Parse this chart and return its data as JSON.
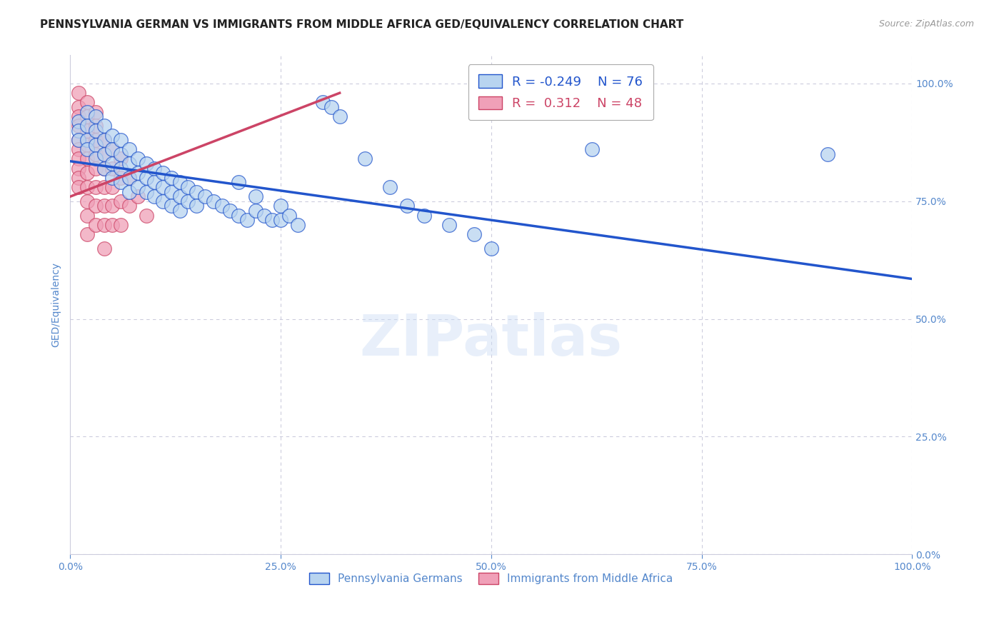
{
  "title": "PENNSYLVANIA GERMAN VS IMMIGRANTS FROM MIDDLE AFRICA GED/EQUIVALENCY CORRELATION CHART",
  "source": "Source: ZipAtlas.com",
  "ylabel": "GED/Equivalency",
  "watermark": "ZIPatlas",
  "r_blue": -0.249,
  "n_blue": 76,
  "r_pink": 0.312,
  "n_pink": 48,
  "blue_color": "#b8d4f0",
  "pink_color": "#f0a0b8",
  "trendline_blue": "#2255cc",
  "trendline_pink": "#cc4466",
  "blue_scatter": [
    [
      0.01,
      0.92
    ],
    [
      0.01,
      0.9
    ],
    [
      0.01,
      0.88
    ],
    [
      0.02,
      0.94
    ],
    [
      0.02,
      0.91
    ],
    [
      0.02,
      0.88
    ],
    [
      0.02,
      0.86
    ],
    [
      0.03,
      0.93
    ],
    [
      0.03,
      0.9
    ],
    [
      0.03,
      0.87
    ],
    [
      0.03,
      0.84
    ],
    [
      0.04,
      0.91
    ],
    [
      0.04,
      0.88
    ],
    [
      0.04,
      0.85
    ],
    [
      0.04,
      0.82
    ],
    [
      0.05,
      0.89
    ],
    [
      0.05,
      0.86
    ],
    [
      0.05,
      0.83
    ],
    [
      0.05,
      0.8
    ],
    [
      0.06,
      0.88
    ],
    [
      0.06,
      0.85
    ],
    [
      0.06,
      0.82
    ],
    [
      0.06,
      0.79
    ],
    [
      0.07,
      0.86
    ],
    [
      0.07,
      0.83
    ],
    [
      0.07,
      0.8
    ],
    [
      0.07,
      0.77
    ],
    [
      0.08,
      0.84
    ],
    [
      0.08,
      0.81
    ],
    [
      0.08,
      0.78
    ],
    [
      0.09,
      0.83
    ],
    [
      0.09,
      0.8
    ],
    [
      0.09,
      0.77
    ],
    [
      0.1,
      0.82
    ],
    [
      0.1,
      0.79
    ],
    [
      0.1,
      0.76
    ],
    [
      0.11,
      0.81
    ],
    [
      0.11,
      0.78
    ],
    [
      0.11,
      0.75
    ],
    [
      0.12,
      0.8
    ],
    [
      0.12,
      0.77
    ],
    [
      0.12,
      0.74
    ],
    [
      0.13,
      0.79
    ],
    [
      0.13,
      0.76
    ],
    [
      0.13,
      0.73
    ],
    [
      0.14,
      0.78
    ],
    [
      0.14,
      0.75
    ],
    [
      0.15,
      0.77
    ],
    [
      0.15,
      0.74
    ],
    [
      0.16,
      0.76
    ],
    [
      0.17,
      0.75
    ],
    [
      0.18,
      0.74
    ],
    [
      0.19,
      0.73
    ],
    [
      0.2,
      0.79
    ],
    [
      0.2,
      0.72
    ],
    [
      0.21,
      0.71
    ],
    [
      0.22,
      0.76
    ],
    [
      0.22,
      0.73
    ],
    [
      0.23,
      0.72
    ],
    [
      0.24,
      0.71
    ],
    [
      0.25,
      0.74
    ],
    [
      0.25,
      0.71
    ],
    [
      0.26,
      0.72
    ],
    [
      0.27,
      0.7
    ],
    [
      0.3,
      0.96
    ],
    [
      0.31,
      0.95
    ],
    [
      0.32,
      0.93
    ],
    [
      0.35,
      0.84
    ],
    [
      0.38,
      0.78
    ],
    [
      0.4,
      0.74
    ],
    [
      0.42,
      0.72
    ],
    [
      0.45,
      0.7
    ],
    [
      0.48,
      0.68
    ],
    [
      0.5,
      0.65
    ],
    [
      0.62,
      0.86
    ],
    [
      0.9,
      0.85
    ]
  ],
  "pink_scatter": [
    [
      0.01,
      0.98
    ],
    [
      0.01,
      0.95
    ],
    [
      0.01,
      0.93
    ],
    [
      0.01,
      0.91
    ],
    [
      0.01,
      0.88
    ],
    [
      0.01,
      0.86
    ],
    [
      0.01,
      0.84
    ],
    [
      0.01,
      0.82
    ],
    [
      0.01,
      0.8
    ],
    [
      0.01,
      0.78
    ],
    [
      0.02,
      0.96
    ],
    [
      0.02,
      0.93
    ],
    [
      0.02,
      0.9
    ],
    [
      0.02,
      0.87
    ],
    [
      0.02,
      0.84
    ],
    [
      0.02,
      0.81
    ],
    [
      0.02,
      0.78
    ],
    [
      0.02,
      0.75
    ],
    [
      0.02,
      0.72
    ],
    [
      0.02,
      0.68
    ],
    [
      0.03,
      0.94
    ],
    [
      0.03,
      0.91
    ],
    [
      0.03,
      0.88
    ],
    [
      0.03,
      0.85
    ],
    [
      0.03,
      0.82
    ],
    [
      0.03,
      0.78
    ],
    [
      0.03,
      0.74
    ],
    [
      0.03,
      0.7
    ],
    [
      0.04,
      0.88
    ],
    [
      0.04,
      0.85
    ],
    [
      0.04,
      0.82
    ],
    [
      0.04,
      0.78
    ],
    [
      0.04,
      0.74
    ],
    [
      0.04,
      0.7
    ],
    [
      0.04,
      0.65
    ],
    [
      0.05,
      0.86
    ],
    [
      0.05,
      0.82
    ],
    [
      0.05,
      0.78
    ],
    [
      0.05,
      0.74
    ],
    [
      0.05,
      0.7
    ],
    [
      0.06,
      0.84
    ],
    [
      0.06,
      0.8
    ],
    [
      0.06,
      0.75
    ],
    [
      0.06,
      0.7
    ],
    [
      0.07,
      0.8
    ],
    [
      0.07,
      0.74
    ],
    [
      0.08,
      0.76
    ],
    [
      0.09,
      0.72
    ]
  ],
  "blue_trend_x": [
    0.0,
    1.0
  ],
  "blue_trend_y": [
    0.835,
    0.585
  ],
  "pink_trend_x": [
    0.0,
    0.32
  ],
  "pink_trend_y": [
    0.76,
    0.98
  ],
  "xlim": [
    0.0,
    1.0
  ],
  "ylim": [
    0.0,
    1.06
  ],
  "xticks": [
    0.0,
    0.25,
    0.5,
    0.75,
    1.0
  ],
  "xtick_labels": [
    "0.0%",
    "25.0%",
    "50.0%",
    "75.0%",
    "100.0%"
  ],
  "ytick_positions": [
    0.0,
    0.25,
    0.5,
    0.75,
    1.0
  ],
  "ytick_labels_right": [
    "0.0%",
    "25.0%",
    "50.0%",
    "75.0%",
    "100.0%"
  ],
  "axis_label_color": "#5588cc",
  "grid_color": "#ccccdd",
  "title_color": "#222222",
  "source_color": "#999999",
  "title_fontsize": 11,
  "source_fontsize": 9,
  "tick_fontsize": 10,
  "ylabel_fontsize": 10
}
